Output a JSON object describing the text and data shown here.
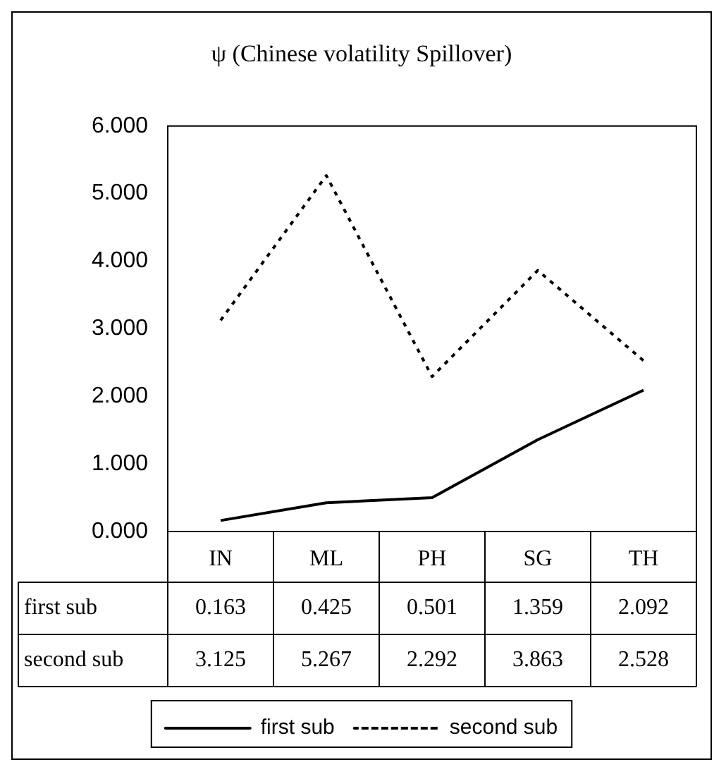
{
  "chart_data": {
    "type": "line",
    "title": "ψ (Chinese volatility Spillover)",
    "categories": [
      "IN",
      "ML",
      "PH",
      "SG",
      "TH"
    ],
    "series": [
      {
        "name": "first sub",
        "color": "#000000",
        "line_style": "solid",
        "values": [
          0.163,
          0.425,
          0.501,
          1.359,
          2.092
        ]
      },
      {
        "name": "second sub",
        "color": "#000000",
        "line_style": "dotted",
        "values": [
          3.125,
          5.267,
          2.292,
          3.863,
          2.528
        ]
      }
    ],
    "ylim": [
      0,
      6
    ],
    "yticks": [
      {
        "value": 0,
        "label": "0.000"
      },
      {
        "value": 1,
        "label": "1.000"
      },
      {
        "value": 2,
        "label": "2.000"
      },
      {
        "value": 3,
        "label": "3.000"
      },
      {
        "value": 4,
        "label": "4.000"
      },
      {
        "value": 5,
        "label": "5.000"
      },
      {
        "value": 6,
        "label": "6.000"
      }
    ],
    "grid": false,
    "legend": "bottom",
    "marker": "none",
    "data_labels": true
  }
}
